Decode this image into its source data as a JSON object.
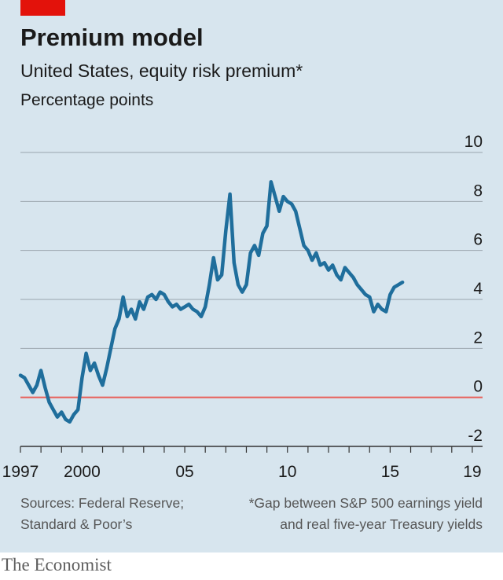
{
  "header": {
    "title": "Premium model",
    "subtitle": "United States, equity risk premium*",
    "unit": "Percentage points"
  },
  "footer": {
    "source_line1": "Sources: Federal Reserve;",
    "source_line2": "Standard & Poor’s",
    "note_line1": "*Gap between S&P 500 earnings yield",
    "note_line2": "and real five-year Treasury yields",
    "brand": "The Economist"
  },
  "colors": {
    "background": "#d7e5ee",
    "line": "#1f6e9c",
    "zero_line": "#e8605a",
    "grid": "#9aa5ad",
    "brand_tag": "#e3120b"
  },
  "chart_data": {
    "type": "line",
    "title": "Premium model",
    "subtitle": "United States, equity risk premium*",
    "ylabel": "Percentage points",
    "ylim": [
      -2,
      10
    ],
    "xlim": [
      1997,
      2019.5
    ],
    "y_ticks": [
      {
        "value": -2,
        "label": "-2"
      },
      {
        "value": 0,
        "label": "0"
      },
      {
        "value": 2,
        "label": "2"
      },
      {
        "value": 4,
        "label": "4"
      },
      {
        "value": 6,
        "label": "6"
      },
      {
        "value": 8,
        "label": "8"
      },
      {
        "value": 10,
        "label": "10"
      }
    ],
    "x_ticks": [
      1997,
      1998,
      1999,
      2000,
      2001,
      2002,
      2003,
      2004,
      2005,
      2006,
      2007,
      2008,
      2009,
      2010,
      2011,
      2012,
      2013,
      2014,
      2015,
      2016,
      2017,
      2018,
      2019
    ],
    "x_labels": [
      {
        "value": 1997,
        "label": "1997"
      },
      {
        "value": 2000,
        "label": "2000"
      },
      {
        "value": 2005,
        "label": "05"
      },
      {
        "value": 2010,
        "label": "10"
      },
      {
        "value": 2015,
        "label": "15"
      },
      {
        "value": 2019,
        "label": "19"
      }
    ],
    "zero_line": 0,
    "grid": true,
    "series": [
      {
        "values": [
          [
            1997.0,
            0.9
          ],
          [
            1997.2,
            0.8
          ],
          [
            1997.4,
            0.5
          ],
          [
            1997.6,
            0.2
          ],
          [
            1997.8,
            0.5
          ],
          [
            1998.0,
            1.1
          ],
          [
            1998.2,
            0.4
          ],
          [
            1998.4,
            -0.2
          ],
          [
            1998.6,
            -0.5
          ],
          [
            1998.8,
            -0.8
          ],
          [
            1999.0,
            -0.6
          ],
          [
            1999.2,
            -0.9
          ],
          [
            1999.4,
            -1.0
          ],
          [
            1999.6,
            -0.7
          ],
          [
            1999.8,
            -0.5
          ],
          [
            2000.0,
            0.8
          ],
          [
            2000.2,
            1.8
          ],
          [
            2000.4,
            1.1
          ],
          [
            2000.6,
            1.4
          ],
          [
            2000.8,
            0.9
          ],
          [
            2001.0,
            0.5
          ],
          [
            2001.2,
            1.2
          ],
          [
            2001.4,
            2.0
          ],
          [
            2001.6,
            2.8
          ],
          [
            2001.8,
            3.2
          ],
          [
            2002.0,
            4.1
          ],
          [
            2002.2,
            3.3
          ],
          [
            2002.4,
            3.6
          ],
          [
            2002.6,
            3.2
          ],
          [
            2002.8,
            3.9
          ],
          [
            2003.0,
            3.6
          ],
          [
            2003.2,
            4.1
          ],
          [
            2003.4,
            4.2
          ],
          [
            2003.6,
            4.0
          ],
          [
            2003.8,
            4.3
          ],
          [
            2004.0,
            4.2
          ],
          [
            2004.2,
            3.9
          ],
          [
            2004.4,
            3.7
          ],
          [
            2004.6,
            3.8
          ],
          [
            2004.8,
            3.6
          ],
          [
            2005.0,
            3.7
          ],
          [
            2005.2,
            3.8
          ],
          [
            2005.4,
            3.6
          ],
          [
            2005.6,
            3.5
          ],
          [
            2005.8,
            3.3
          ],
          [
            2006.0,
            3.7
          ],
          [
            2006.2,
            4.6
          ],
          [
            2006.4,
            5.7
          ],
          [
            2006.6,
            4.8
          ],
          [
            2006.8,
            5.0
          ],
          [
            2007.0,
            6.8
          ],
          [
            2007.2,
            8.3
          ],
          [
            2007.4,
            5.5
          ],
          [
            2007.6,
            4.6
          ],
          [
            2007.8,
            4.3
          ],
          [
            2008.0,
            4.6
          ],
          [
            2008.2,
            5.9
          ],
          [
            2008.4,
            6.2
          ],
          [
            2008.6,
            5.8
          ],
          [
            2008.8,
            6.7
          ],
          [
            2009.0,
            7.0
          ],
          [
            2009.2,
            8.8
          ],
          [
            2009.4,
            8.2
          ],
          [
            2009.6,
            7.6
          ],
          [
            2009.8,
            8.2
          ],
          [
            2010.0,
            8.0
          ],
          [
            2010.2,
            7.9
          ],
          [
            2010.4,
            7.6
          ],
          [
            2010.6,
            6.9
          ],
          [
            2010.8,
            6.2
          ],
          [
            2011.0,
            6.0
          ],
          [
            2011.2,
            5.6
          ],
          [
            2011.4,
            5.9
          ],
          [
            2011.6,
            5.4
          ],
          [
            2011.8,
            5.5
          ],
          [
            2012.0,
            5.2
          ],
          [
            2012.2,
            5.4
          ],
          [
            2012.4,
            5.0
          ],
          [
            2012.6,
            4.8
          ],
          [
            2012.8,
            5.3
          ],
          [
            2013.0,
            5.1
          ],
          [
            2013.2,
            4.9
          ],
          [
            2013.4,
            4.6
          ],
          [
            2013.6,
            4.4
          ],
          [
            2013.8,
            4.2
          ],
          [
            2014.0,
            4.1
          ],
          [
            2014.2,
            3.5
          ],
          [
            2014.4,
            3.8
          ],
          [
            2014.6,
            3.6
          ],
          [
            2014.8,
            3.5
          ],
          [
            2015.0,
            4.2
          ],
          [
            2015.2,
            4.5
          ],
          [
            2015.4,
            4.6
          ],
          [
            2015.6,
            4.7
          ]
        ]
      }
    ]
  }
}
